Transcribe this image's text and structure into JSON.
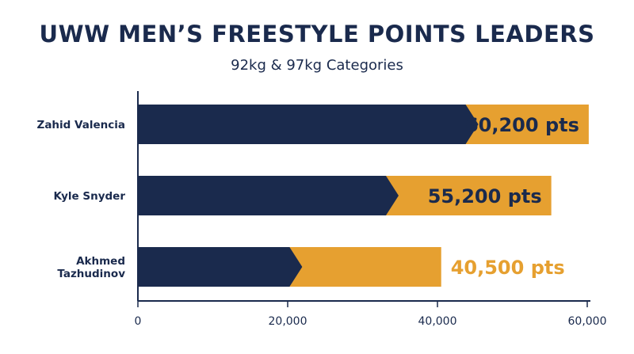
{
  "header": {
    "title": "UWW MEN’S FREESTYLE POINTS LEADERS",
    "subtitle": "92kg & 97kg Categories"
  },
  "colors": {
    "navy": "#1a2a4d",
    "gold": "#e6a030"
  },
  "chart_data": {
    "type": "bar",
    "orientation": "horizontal",
    "title": "UWW MEN’S FREESTYLE POINTS LEADERS",
    "subtitle": "92kg & 97kg Categories",
    "categories": [
      "Zahid Valencia",
      "Kyle Snyder",
      "Akhmed Tazhudinov"
    ],
    "category_lines": [
      [
        "Zahid Valencia"
      ],
      [
        "Kyle Snyder"
      ],
      [
        "Akhmed",
        "Tazhudinov"
      ]
    ],
    "values": [
      60200,
      55200,
      40500
    ],
    "value_labels": [
      "60,200 pts",
      "55,200 pts",
      "40,500 pts"
    ],
    "xlim": [
      0,
      60000
    ],
    "xticks": [
      0,
      20000,
      40000,
      60000
    ],
    "xtick_labels": [
      "0",
      "20,000",
      "40,000",
      "60,000"
    ],
    "grid": false,
    "legend": "none"
  }
}
